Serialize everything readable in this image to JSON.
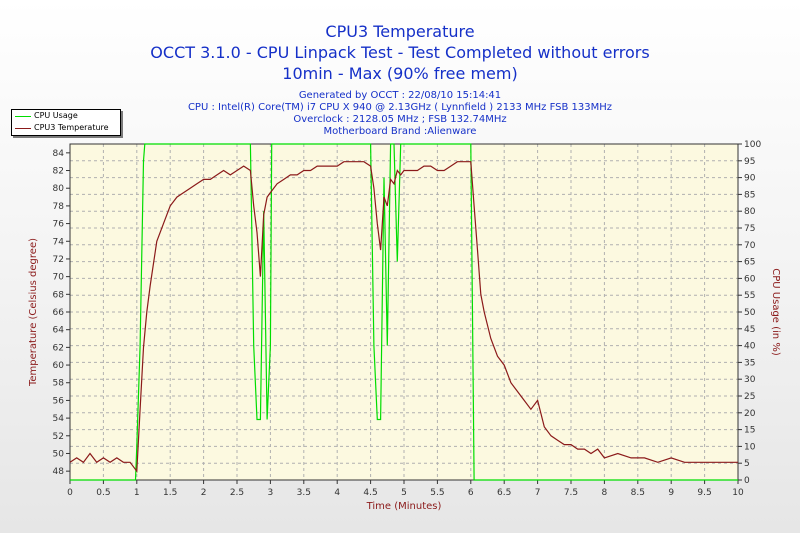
{
  "header": {
    "title": "CPU3 Temperature",
    "subtitle1": "OCCT 3.1.0 - CPU Linpack Test - Test Completed without errors",
    "subtitle2": "10min - Max (90% free mem)",
    "info1": "Generated by OCCT : 22/08/10 15:14:41",
    "info2": "CPU : Intel(R) Core(TM) i7 CPU X 940 @ 2.13GHz ( Lynnfield ) 2133 MHz FSB 133MHz",
    "info3": "Overclock : 2128.05 MHz ; FSB 132.74MHz",
    "info4": "Motherboard Brand :Alienware"
  },
  "legend": {
    "cpu_usage": "CPU Usage",
    "cpu3_temp": "CPU3 Temperature"
  },
  "colors": {
    "cpu_usage": "#00dd00",
    "temperature": "#8b1a1a",
    "plot_bg": "#fcf9e0",
    "grid": "#b0b0b0",
    "title": "#1530c8"
  },
  "chart_data": {
    "type": "line",
    "xlabel": "Time (Minutes)",
    "ylabel_left": "Temperature (Celsius degree)",
    "ylabel_right": "CPU Usage (in %)",
    "xlim": [
      0,
      10
    ],
    "ylim_left": [
      47,
      85
    ],
    "ylim_right": [
      0,
      100
    ],
    "xticks": [
      0,
      0.5,
      1,
      1.5,
      2,
      2.5,
      3,
      3.5,
      4,
      4.5,
      5,
      5.5,
      6,
      6.5,
      7,
      7.5,
      8,
      8.5,
      9,
      9.5,
      10
    ],
    "yticks_left": [
      48,
      50,
      52,
      54,
      56,
      58,
      60,
      62,
      64,
      66,
      68,
      70,
      72,
      74,
      76,
      78,
      80,
      82,
      84
    ],
    "yticks_right": [
      0,
      5,
      10,
      15,
      20,
      25,
      30,
      35,
      40,
      45,
      50,
      55,
      60,
      65,
      70,
      75,
      80,
      85,
      90,
      95,
      100
    ],
    "grid": true,
    "legend_position": "top-left",
    "series": [
      {
        "name": "CPU Usage",
        "axis": "right",
        "x": [
          0,
          0.98,
          1.0,
          1.05,
          1.1,
          1.12,
          2.7,
          2.75,
          2.8,
          2.85,
          2.9,
          2.95,
          3.0,
          3.02,
          4.5,
          4.55,
          4.6,
          4.65,
          4.7,
          4.75,
          4.8,
          4.85,
          4.9,
          4.95,
          5.0,
          5.05,
          6.0,
          6.03,
          6.05,
          10
        ],
        "y": [
          0,
          0,
          10,
          40,
          95,
          100,
          100,
          40,
          18,
          18,
          80,
          18,
          40,
          100,
          100,
          40,
          18,
          18,
          90,
          40,
          100,
          100,
          65,
          100,
          100,
          100,
          100,
          40,
          0,
          0
        ]
      },
      {
        "name": "CPU3 Temperature",
        "axis": "left",
        "x": [
          0,
          0.1,
          0.2,
          0.3,
          0.4,
          0.5,
          0.6,
          0.7,
          0.8,
          0.9,
          1.0,
          1.05,
          1.1,
          1.15,
          1.2,
          1.3,
          1.4,
          1.5,
          1.6,
          1.7,
          1.8,
          1.9,
          2.0,
          2.1,
          2.2,
          2.3,
          2.4,
          2.5,
          2.6,
          2.7,
          2.75,
          2.8,
          2.85,
          2.9,
          2.95,
          3.0,
          3.1,
          3.2,
          3.3,
          3.4,
          3.5,
          3.6,
          3.7,
          3.8,
          3.9,
          4.0,
          4.1,
          4.2,
          4.3,
          4.4,
          4.5,
          4.55,
          4.6,
          4.65,
          4.7,
          4.75,
          4.8,
          4.85,
          4.9,
          4.95,
          5.0,
          5.1,
          5.2,
          5.3,
          5.4,
          5.5,
          5.6,
          5.7,
          5.8,
          5.9,
          6.0,
          6.05,
          6.1,
          6.15,
          6.2,
          6.3,
          6.4,
          6.5,
          6.6,
          6.7,
          6.8,
          6.9,
          7.0,
          7.1,
          7.2,
          7.3,
          7.4,
          7.5,
          7.6,
          7.7,
          7.8,
          7.9,
          8.0,
          8.2,
          8.4,
          8.6,
          8.8,
          9.0,
          9.2,
          9.4,
          9.6,
          9.8,
          10
        ],
        "y": [
          49,
          49.5,
          49,
          50,
          49,
          49.5,
          49,
          49.5,
          49,
          49,
          48,
          55,
          62,
          66,
          69,
          74,
          76,
          78,
          79,
          79.5,
          80,
          80.5,
          81,
          81,
          81.5,
          82,
          81.5,
          82,
          82.5,
          82,
          78,
          75,
          70,
          77,
          79,
          79.5,
          80.5,
          81,
          81.5,
          81.5,
          82,
          82,
          82.5,
          82.5,
          82.5,
          82.5,
          83,
          83,
          83,
          83,
          82.5,
          80,
          76,
          73,
          79,
          78,
          81,
          80.5,
          82,
          81.5,
          82,
          82,
          82,
          82.5,
          82.5,
          82,
          82,
          82.5,
          83,
          83,
          83,
          78,
          73,
          68,
          66,
          63,
          61,
          60,
          58,
          57,
          56,
          55,
          56,
          53,
          52,
          51.5,
          51,
          51,
          50.5,
          50.5,
          50,
          50.5,
          49.5,
          50,
          49.5,
          49.5,
          49,
          49.5,
          49,
          49,
          49,
          49,
          49
        ]
      }
    ]
  }
}
